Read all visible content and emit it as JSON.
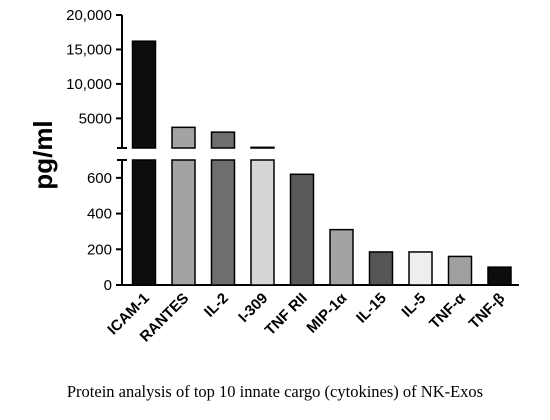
{
  "chart_data": {
    "type": "bar",
    "caption": "Protein analysis of top 10 innate cargo (cytokines) of NK-Exos",
    "ylabel": "pg/ml",
    "xlabel": "",
    "categories": [
      "ICAM-1",
      "RANTES",
      "IL-2",
      "I-309",
      "TNF RII",
      "MIP-1α",
      "IL-15",
      "IL-5",
      "TNF-α",
      "TNF-β"
    ],
    "values": [
      16200,
      3700,
      3000,
      800,
      620,
      310,
      185,
      185,
      160,
      100
    ],
    "colors": [
      "#0d0d0d",
      "#a3a3a3",
      "#6e6e6e",
      "#d6d6d6",
      "#5a5a5a",
      "#a3a3a3",
      "#555555",
      "#eeeeee",
      "#a0a0a0",
      "#0d0d0d"
    ],
    "axis_break": true,
    "ylim_lower": [
      0,
      700
    ],
    "ylim_upper": [
      700,
      20000
    ],
    "yticks_lower": [
      "0",
      "200",
      "400",
      "600"
    ],
    "yticks_upper": [
      "5000",
      "10,000",
      "15,000",
      "20,000"
    ],
    "grid": false,
    "legend": "none"
  }
}
